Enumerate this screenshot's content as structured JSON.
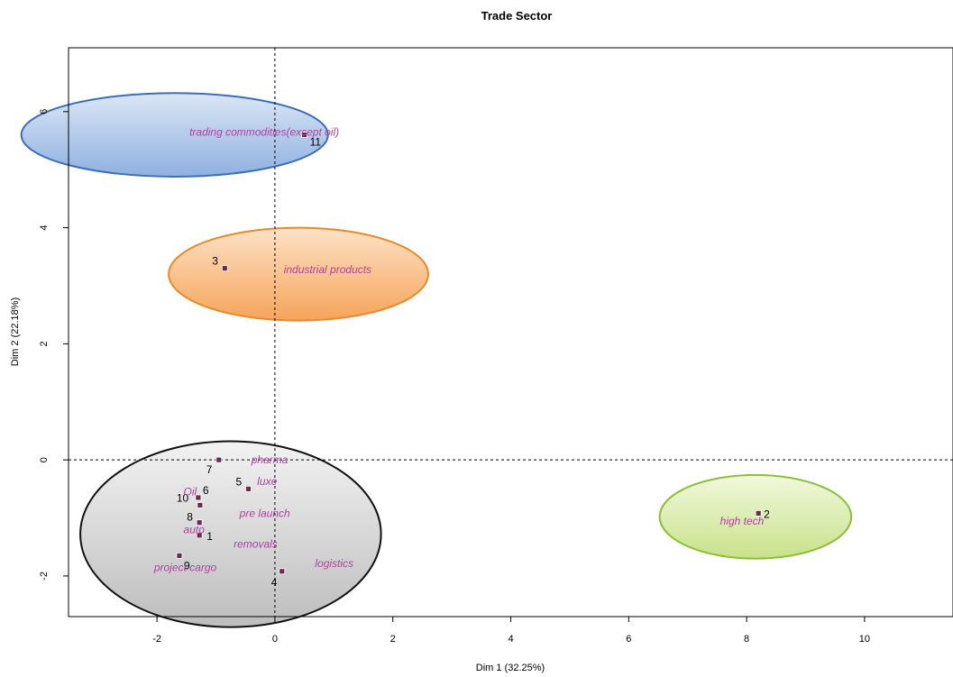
{
  "chart_data": {
    "type": "scatter",
    "title": "Trade Sector",
    "xlabel": "Dim 1 (32.25%)",
    "ylabel": "Dim 2 (22.18%)",
    "xlim": [
      -3.5,
      11.5
    ],
    "ylim": [
      -2.7,
      7.1
    ],
    "xticks": [
      -2,
      0,
      2,
      4,
      6,
      8,
      10
    ],
    "yticks": [
      -2,
      0,
      2,
      4,
      6
    ],
    "grid": false,
    "colors": {
      "point": "#6b2a4e",
      "category_text": "#b040a0",
      "zero_lines": "#000000"
    },
    "points": [
      {
        "id": "1",
        "x": -1.28,
        "y": -1.3
      },
      {
        "id": "2",
        "x": 8.2,
        "y": -0.92
      },
      {
        "id": "3",
        "x": -0.85,
        "y": 3.3
      },
      {
        "id": "4",
        "x": 0.12,
        "y": -1.92
      },
      {
        "id": "5",
        "x": -0.45,
        "y": -0.5
      },
      {
        "id": "6",
        "x": -1.3,
        "y": -0.65
      },
      {
        "id": "7",
        "x": -0.95,
        "y": 0.0
      },
      {
        "id": "8",
        "x": -1.28,
        "y": -1.08
      },
      {
        "id": "9",
        "x": -1.62,
        "y": -1.65
      },
      {
        "id": "10",
        "x": -1.27,
        "y": -0.78
      },
      {
        "id": "11",
        "x": 0.5,
        "y": 5.6
      }
    ],
    "categories": [
      {
        "label": "trading commodities(except oil)",
        "x": -1.45,
        "y": 5.65
      },
      {
        "label": "industrial products",
        "x": 0.15,
        "y": 3.28
      },
      {
        "label": "pharma",
        "x": -0.4,
        "y": 0.0
      },
      {
        "label": "luxe",
        "x": -0.3,
        "y": -0.37
      },
      {
        "label": "Oil",
        "x": -1.55,
        "y": -0.55
      },
      {
        "label": "pre launch",
        "x": -0.6,
        "y": -0.92
      },
      {
        "label": "auto",
        "x": -1.55,
        "y": -1.2
      },
      {
        "label": "removals",
        "x": -0.7,
        "y": -1.45
      },
      {
        "label": "project cargo",
        "x": -2.05,
        "y": -1.85
      },
      {
        "label": "logistics",
        "x": 0.68,
        "y": -1.78
      },
      {
        "label": "high tech",
        "x": 7.55,
        "y": -1.05
      }
    ],
    "ellipses": [
      {
        "name": "trading",
        "cx": -1.7,
        "cy": 5.6,
        "rx": 5.2,
        "ry": 0.72,
        "fill_top": "#dbe6f6",
        "fill_bottom": "#8fb0e0",
        "stroke": "#3a6fb8"
      },
      {
        "name": "industrial",
        "cx": 0.4,
        "cy": 3.2,
        "rx": 4.4,
        "ry": 0.8,
        "fill_top": "#fde2c6",
        "fill_bottom": "#f5a45a",
        "stroke": "#e88a2a"
      },
      {
        "name": "main",
        "cx": -0.75,
        "cy": -1.28,
        "rx": 5.1,
        "ry": 1.6,
        "fill_top": "#f2f2f2",
        "fill_bottom": "#bdbdbd",
        "stroke": "#111111"
      },
      {
        "name": "hightech",
        "cx": 8.15,
        "cy": -0.98,
        "rx": 3.25,
        "ry": 0.72,
        "fill_top": "#f1f8dc",
        "fill_bottom": "#c8e28a",
        "stroke": "#8cbf3a"
      }
    ]
  }
}
